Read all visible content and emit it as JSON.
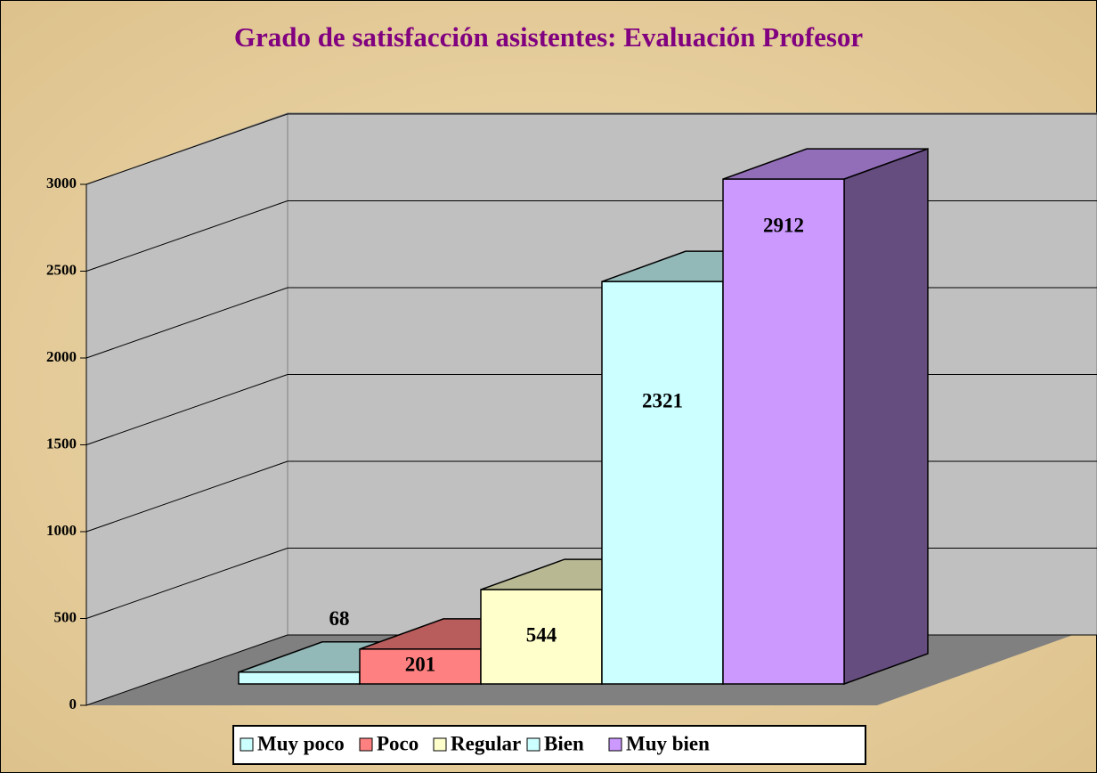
{
  "chart_data": {
    "type": "bar3d",
    "title": "Grado de satisfacción asistentes: Evaluación Profesor",
    "categories": [
      "Muy poco",
      "Poco",
      "Regular",
      "Bien",
      "Muy bien"
    ],
    "values": [
      68,
      201,
      544,
      2321,
      2912
    ],
    "colors": [
      "#ccffff",
      "#ff8080",
      "#ffffcc",
      "#ccffff",
      "#cc99ff"
    ],
    "ylim": [
      0,
      3000
    ],
    "yticks": [
      0,
      500,
      1000,
      1500,
      2000,
      2500,
      3000
    ],
    "grid": true,
    "legend": "bottom"
  }
}
